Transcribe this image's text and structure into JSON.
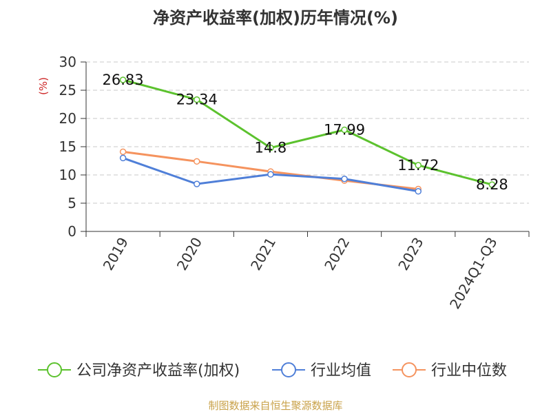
{
  "chart_data": {
    "type": "line",
    "title": "净资产收益率(加权)历年情况(%)",
    "ylabel": "(%)",
    "categories": [
      "2019",
      "2020",
      "2021",
      "2022",
      "2023",
      "2024Q1-Q3"
    ],
    "ylim": [
      0,
      30
    ],
    "yticks": [
      0,
      5,
      10,
      15,
      20,
      25,
      30
    ],
    "grid": true,
    "legend_position": "bottom",
    "series": [
      {
        "name": "公司净资产收益率(加权)",
        "color": "#5cc22e",
        "values": [
          26.83,
          23.34,
          14.8,
          17.99,
          11.72,
          8.28
        ],
        "data_labels": [
          "26.83",
          "23.34",
          "14.8",
          "17.99",
          "11.72",
          "8.28"
        ]
      },
      {
        "name": "行业均值",
        "color": "#4f7fd8",
        "values": [
          13.0,
          8.4,
          10.1,
          9.3,
          7.1,
          null
        ]
      },
      {
        "name": "行业中位数",
        "color": "#f5935e",
        "values": [
          14.1,
          12.4,
          10.6,
          9.0,
          7.5,
          null
        ]
      }
    ]
  },
  "source": "制图数据来自恒生聚源数据库"
}
